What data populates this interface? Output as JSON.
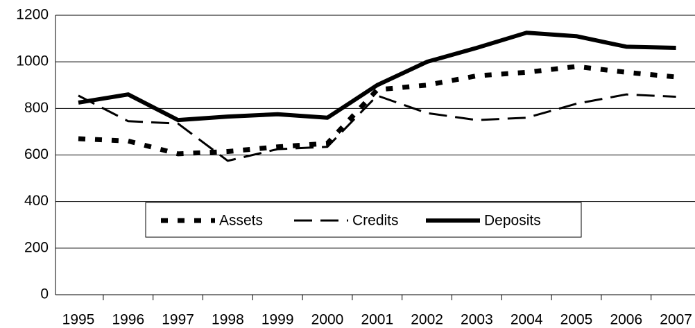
{
  "chart_data": {
    "type": "line",
    "categories": [
      "1995",
      "1996",
      "1997",
      "1998",
      "1999",
      "2000",
      "2001",
      "2002",
      "2003",
      "2004",
      "2005",
      "2006",
      "2007"
    ],
    "series": [
      {
        "name": "Assets",
        "color": "#000000",
        "style": "dotted",
        "values": [
          670,
          660,
          605,
          615,
          635,
          650,
          880,
          900,
          940,
          955,
          980,
          955,
          935
        ]
      },
      {
        "name": "Credits",
        "color": "#000000",
        "style": "dashed",
        "values": [
          855,
          745,
          735,
          575,
          625,
          635,
          855,
          780,
          750,
          760,
          820,
          860,
          850
        ]
      },
      {
        "name": "Deposits",
        "color": "#000000",
        "style": "solid",
        "values": [
          825,
          860,
          750,
          765,
          775,
          760,
          900,
          1000,
          1060,
          1125,
          1110,
          1065,
          1060
        ]
      }
    ],
    "ylim": [
      0,
      1200
    ],
    "yticks": [
      0,
      200,
      400,
      600,
      800,
      1000,
      1200
    ],
    "grid": true
  }
}
